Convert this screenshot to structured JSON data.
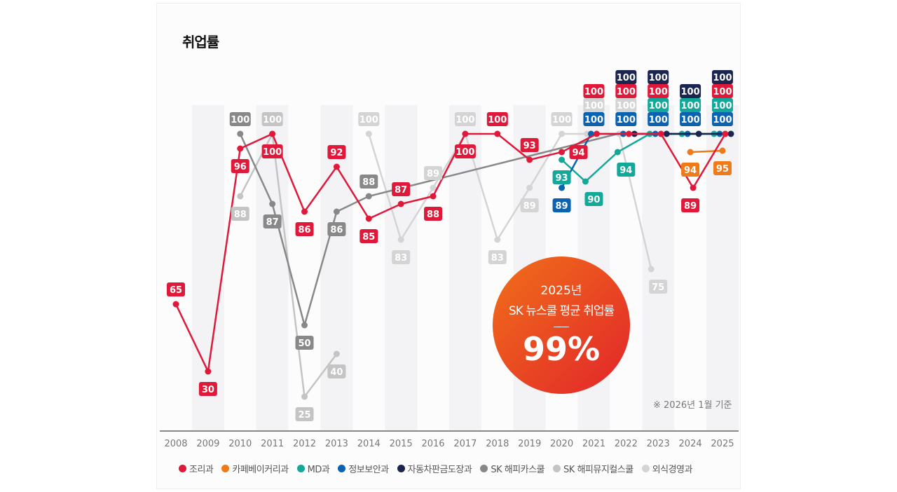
{
  "title": "취업률",
  "badge": {
    "year": "2025년",
    "label": "SK 뉴스쿨 평균 취업률",
    "value": "99%"
  },
  "note": "※ 2026년 1월 기준",
  "chart_data": {
    "type": "line",
    "title": "취업률",
    "categories": [
      "2008",
      "2009",
      "2010",
      "2011",
      "2012",
      "2013",
      "2014",
      "2015",
      "2016",
      "2017",
      "2018",
      "2019",
      "2020",
      "2021",
      "2022",
      "2023",
      "2024",
      "2025"
    ],
    "ylabel": "",
    "xlabel": "",
    "legend_position": "bottom",
    "series": [
      {
        "name": "조리과",
        "color": "#e0193a",
        "values": [
          65,
          30,
          96,
          100,
          86,
          92,
          85,
          87,
          88,
          100,
          100,
          93,
          94,
          100,
          100,
          100,
          89,
          100
        ]
      },
      {
        "name": "카페베이커리과",
        "color": "#ee7a1a",
        "values": [
          null,
          null,
          null,
          null,
          null,
          null,
          null,
          null,
          null,
          null,
          null,
          null,
          null,
          null,
          null,
          null,
          94,
          95
        ]
      },
      {
        "name": "MD과",
        "color": "#14a89a",
        "values": [
          null,
          null,
          null,
          null,
          null,
          null,
          null,
          null,
          null,
          null,
          null,
          null,
          93,
          90,
          94,
          100,
          100,
          100
        ]
      },
      {
        "name": "정보보안과",
        "color": "#0b62b0",
        "values": [
          null,
          null,
          null,
          null,
          null,
          null,
          null,
          null,
          null,
          null,
          null,
          null,
          89,
          100,
          100,
          100,
          100,
          100
        ]
      },
      {
        "name": "자동차판금도장과",
        "color": "#1b2550",
        "values": [
          null,
          null,
          null,
          null,
          null,
          null,
          null,
          null,
          null,
          null,
          null,
          null,
          null,
          null,
          100,
          100,
          100,
          100
        ]
      },
      {
        "name": "SK 해피카스쿨",
        "color": "#888888",
        "values": [
          null,
          null,
          100,
          87,
          50,
          86,
          88,
          null,
          null,
          null,
          null,
          null,
          null,
          null,
          null,
          null,
          null,
          null
        ]
      },
      {
        "name": "SK 해피뮤지컬스쿨",
        "color": "#c4c4c4",
        "values": [
          null,
          null,
          88,
          100,
          25,
          40,
          null,
          null,
          null,
          null,
          null,
          null,
          null,
          null,
          null,
          null,
          null,
          null
        ]
      },
      {
        "name": "외식경영과",
        "color": "#d4d4d4",
        "values": [
          null,
          null,
          null,
          null,
          null,
          null,
          100,
          83,
          89,
          100,
          83,
          89,
          100,
          100,
          100,
          75,
          null,
          null
        ]
      }
    ]
  }
}
